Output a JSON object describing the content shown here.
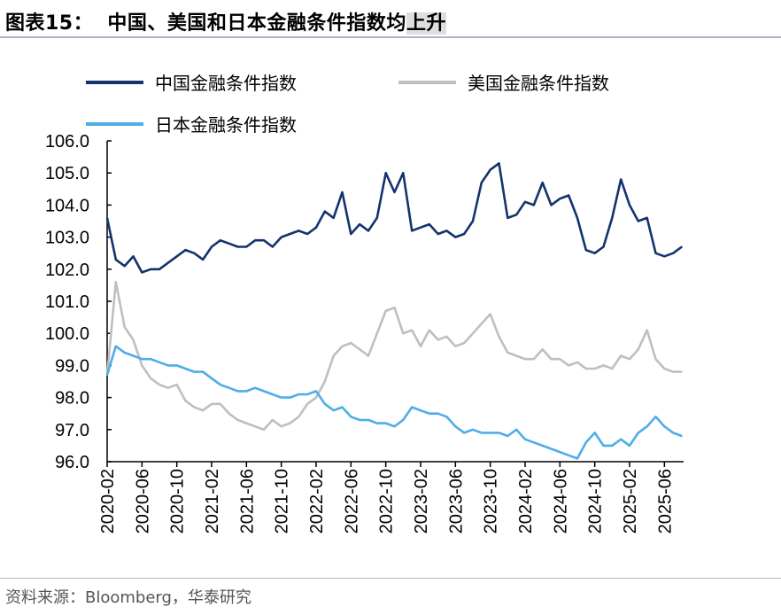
{
  "header": {
    "title_prefix": "图表15：  中国、美国和日本金融条件指数均",
    "title_highlight": "上升"
  },
  "footer": {
    "source": "资料来源：Bloomberg，华泰研究"
  },
  "chart_data": {
    "type": "line",
    "title": "中国、美国和日本金融条件指数均上升",
    "xlabel": "",
    "ylabel": "",
    "ylim": [
      96.0,
      106.0
    ],
    "yticks": [
      "96.0",
      "97.0",
      "98.0",
      "99.0",
      "100.0",
      "101.0",
      "102.0",
      "103.0",
      "104.0",
      "105.0",
      "106.0"
    ],
    "xticks": [
      "2020-02",
      "2020-06",
      "2020-10",
      "2021-02",
      "2021-06",
      "2021-10",
      "2022-02",
      "2022-06",
      "2022-10",
      "2023-02",
      "2023-06",
      "2023-10",
      "2024-02",
      "2024-06",
      "2024-10",
      "2025-02",
      "2025-06"
    ],
    "x_start": "2020-02",
    "x_frequency": "monthly",
    "grid": false,
    "legend_placement": "top",
    "series": [
      {
        "name": "中国金融条件指数",
        "color": "#14336e",
        "values": [
          103.6,
          102.3,
          102.1,
          102.4,
          101.9,
          102.0,
          102.0,
          102.2,
          102.4,
          102.6,
          102.5,
          102.3,
          102.7,
          102.9,
          102.8,
          102.7,
          102.7,
          102.9,
          102.9,
          102.7,
          103.0,
          103.1,
          103.2,
          103.1,
          103.3,
          103.8,
          103.6,
          104.4,
          103.1,
          103.4,
          103.2,
          103.6,
          105.0,
          104.4,
          105.0,
          103.2,
          103.3,
          103.4,
          103.1,
          103.2,
          103.0,
          103.1,
          103.5,
          104.7,
          105.1,
          105.3,
          103.6,
          103.7,
          104.1,
          104.0,
          104.7,
          104.0,
          104.2,
          104.3,
          103.6,
          102.6,
          102.5,
          102.7,
          103.6,
          104.8,
          104.0,
          103.5,
          103.6,
          102.5,
          102.4,
          102.5,
          102.7
        ]
      },
      {
        "name": "美国金融条件指数",
        "color": "#bfbfbf",
        "values": [
          98.7,
          101.6,
          100.2,
          99.8,
          99.0,
          98.6,
          98.4,
          98.3,
          98.4,
          97.9,
          97.7,
          97.6,
          97.8,
          97.8,
          97.5,
          97.3,
          97.2,
          97.1,
          97.0,
          97.3,
          97.1,
          97.2,
          97.4,
          97.8,
          98.0,
          98.5,
          99.3,
          99.6,
          99.7,
          99.5,
          99.3,
          100.0,
          100.7,
          100.8,
          100.0,
          100.1,
          99.6,
          100.1,
          99.8,
          99.9,
          99.6,
          99.7,
          100.0,
          100.3,
          100.6,
          99.9,
          99.4,
          99.3,
          99.2,
          99.2,
          99.5,
          99.2,
          99.2,
          99.0,
          99.1,
          98.9,
          98.9,
          99.0,
          98.9,
          99.3,
          99.2,
          99.5,
          100.1,
          99.2,
          98.9,
          98.8,
          98.8
        ]
      },
      {
        "name": "日本金融条件指数",
        "color": "#4fade8",
        "values": [
          98.7,
          99.6,
          99.4,
          99.3,
          99.2,
          99.2,
          99.1,
          99.0,
          99.0,
          98.9,
          98.8,
          98.8,
          98.6,
          98.4,
          98.3,
          98.2,
          98.2,
          98.3,
          98.2,
          98.1,
          98.0,
          98.0,
          98.1,
          98.1,
          98.2,
          97.8,
          97.6,
          97.7,
          97.4,
          97.3,
          97.3,
          97.2,
          97.2,
          97.1,
          97.3,
          97.7,
          97.6,
          97.5,
          97.5,
          97.4,
          97.1,
          96.9,
          97.0,
          96.9,
          96.9,
          96.9,
          96.8,
          97.0,
          96.7,
          96.6,
          96.5,
          96.4,
          96.3,
          96.2,
          96.1,
          96.6,
          96.9,
          96.5,
          96.5,
          96.7,
          96.5,
          96.9,
          97.1,
          97.4,
          97.1,
          96.9,
          96.8
        ]
      }
    ]
  }
}
